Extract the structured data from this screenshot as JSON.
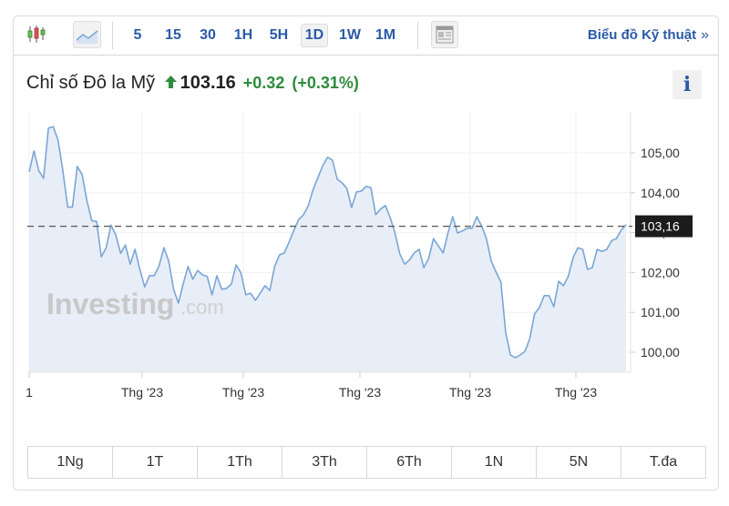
{
  "toolbar": {
    "chart_type_icons": [
      {
        "name": "candlestick-icon",
        "active": false
      },
      {
        "name": "area-chart-icon",
        "active": true
      }
    ],
    "intervals": [
      {
        "label": "5",
        "active": false
      },
      {
        "label": "15",
        "active": false
      },
      {
        "label": "30",
        "active": false
      },
      {
        "label": "1H",
        "active": false
      },
      {
        "label": "5H",
        "active": false
      },
      {
        "label": "1D",
        "active": true
      },
      {
        "label": "1W",
        "active": false
      },
      {
        "label": "1M",
        "active": false
      }
    ],
    "layout_icon": "layout-icon",
    "tech_chart_link": "Biểu đồ Kỹ thuật",
    "tech_chart_arrows": "»"
  },
  "header": {
    "instrument": "Chỉ số Đô la Mỹ",
    "direction_icon": "up-arrow-icon",
    "price": "103.16",
    "change": "+0.32",
    "change_pct": "(+0.31%)",
    "info_label": "i"
  },
  "colors": {
    "accent": "#2a5aa8",
    "positive": "#2e8b3c",
    "line": "#7aa6d6",
    "fill": "#e8eef7",
    "price_tag_bg": "#1c1c1c"
  },
  "watermark": {
    "brand": "Investing",
    "suffix": ".com"
  },
  "chart_data": {
    "type": "area",
    "title": "Chỉ số Đô la Mỹ",
    "xlabel": "",
    "ylabel": "",
    "ylim": [
      99.5,
      106.0
    ],
    "y_ticks": [
      "105,00",
      "104,00",
      "103,00",
      "102,00",
      "101,00",
      "100,00"
    ],
    "x_ticks": [
      "1",
      "Thg '23",
      "Thg '23",
      "Thg '23",
      "Thg '23",
      "Thg '23"
    ],
    "grid": true,
    "legend": "none",
    "current_price_line": 103.16,
    "current_price_label": "103,16",
    "series": [
      {
        "name": "Chỉ số Đô la Mỹ",
        "values": [
          104.52,
          105.05,
          104.55,
          104.36,
          105.62,
          105.66,
          105.32,
          104.55,
          103.64,
          103.64,
          104.66,
          104.46,
          103.8,
          103.3,
          103.28,
          102.39,
          102.62,
          103.19,
          102.94,
          102.48,
          102.69,
          102.21,
          102.58,
          102.07,
          101.64,
          101.92,
          101.92,
          102.17,
          102.62,
          102.28,
          101.58,
          101.23,
          101.71,
          102.15,
          101.83,
          102.05,
          101.94,
          101.9,
          101.44,
          101.92,
          101.58,
          101.6,
          101.71,
          102.19,
          101.99,
          101.44,
          101.48,
          101.3,
          101.48,
          101.67,
          101.55,
          102.15,
          102.44,
          102.49,
          102.76,
          103.06,
          103.33,
          103.45,
          103.68,
          104.09,
          104.38,
          104.68,
          104.89,
          104.82,
          104.34,
          104.25,
          104.11,
          103.63,
          104.02,
          104.04,
          104.16,
          104.13,
          103.45,
          103.59,
          103.68,
          103.38,
          102.99,
          102.47,
          102.21,
          102.31,
          102.49,
          102.58,
          102.12,
          102.35,
          102.85,
          102.67,
          102.49,
          102.99,
          103.4,
          102.99,
          103.04,
          103.11,
          103.11,
          103.4,
          103.17,
          102.85,
          102.28,
          102.01,
          101.76,
          100.5,
          99.93,
          99.86,
          99.93,
          100.02,
          100.34,
          100.96,
          101.12,
          101.42,
          101.42,
          101.14,
          101.78,
          101.67,
          101.9,
          102.37,
          102.62,
          102.58,
          102.08,
          102.12,
          102.58,
          102.53,
          102.58,
          102.8,
          102.85,
          103.06,
          103.2
        ]
      }
    ]
  },
  "range_buttons": [
    {
      "label": "1Ng"
    },
    {
      "label": "1T"
    },
    {
      "label": "1Th"
    },
    {
      "label": "3Th"
    },
    {
      "label": "6Th"
    },
    {
      "label": "1N"
    },
    {
      "label": "5N"
    },
    {
      "label": "T.đa"
    }
  ]
}
